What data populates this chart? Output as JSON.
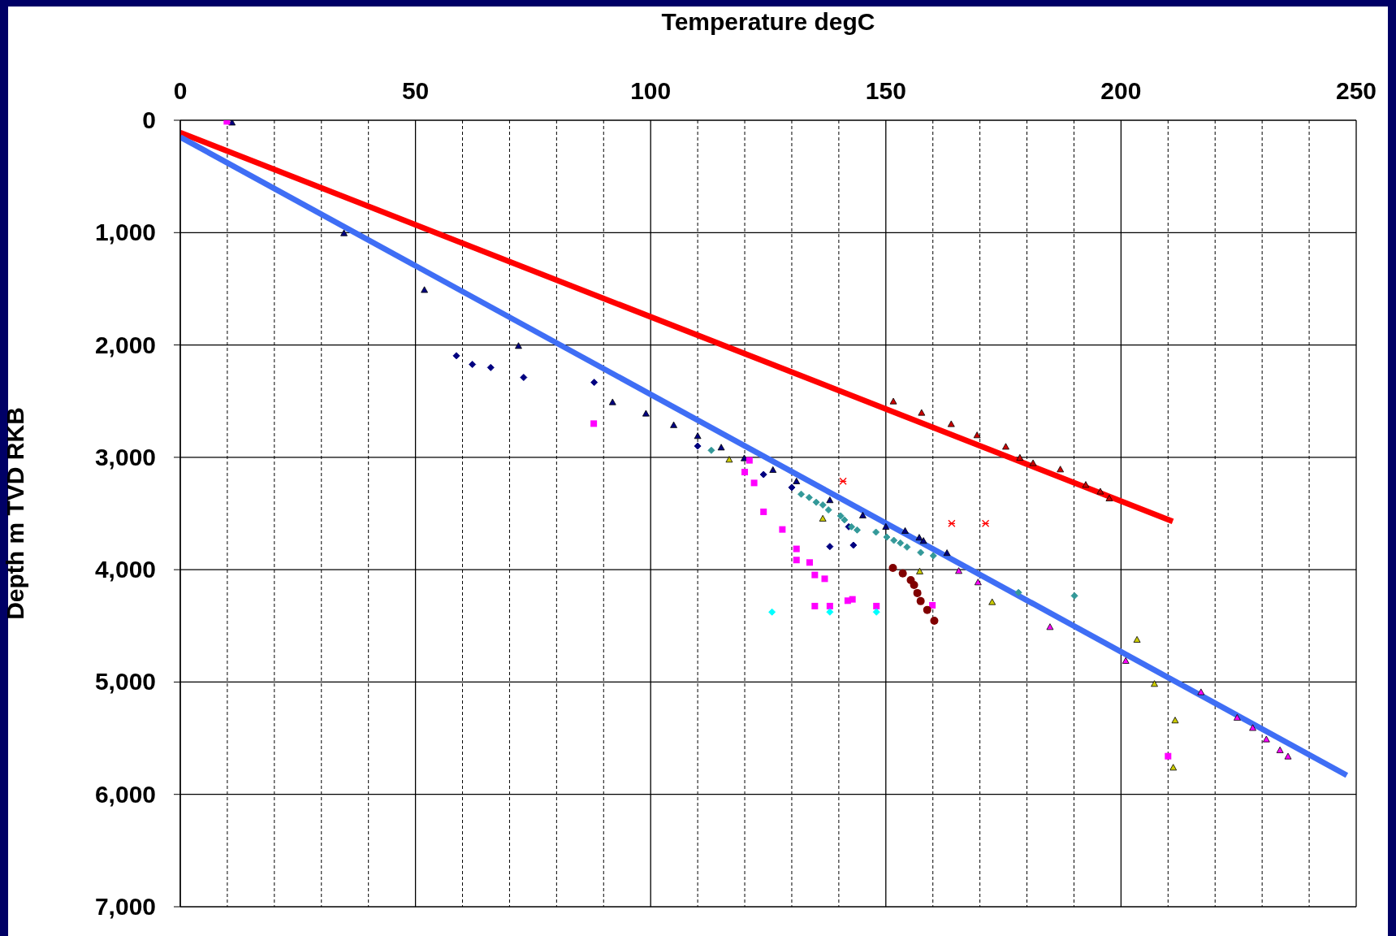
{
  "chart_data": {
    "type": "scatter",
    "xlabel": "Temperature degC",
    "ylabel": "Depth m TVD RKB",
    "xlim": [
      0,
      250
    ],
    "xticks": [
      0,
      {
        "value": 10,
        "label": null
      },
      {
        "value": 20,
        "label": null
      },
      {
        "value": 30,
        "label": null
      },
      {
        "value": 40,
        "label": null
      },
      50,
      {
        "value": 60,
        "label": null
      },
      {
        "value": 70,
        "label": null
      },
      {
        "value": 80,
        "label": null
      },
      {
        "value": 90,
        "label": null
      },
      100,
      {
        "value": 110,
        "label": null
      },
      {
        "value": 120,
        "label": null
      },
      {
        "value": 130,
        "label": null
      },
      {
        "value": 140,
        "label": null
      },
      150,
      {
        "value": 160,
        "label": null
      },
      {
        "value": 170,
        "label": null
      },
      {
        "value": 180,
        "label": null
      },
      {
        "value": 190,
        "label": null
      },
      200,
      {
        "value": 210,
        "label": null
      },
      {
        "value": 220,
        "label": null
      },
      {
        "value": 230,
        "label": null
      },
      {
        "value": 240,
        "label": null
      },
      250
    ],
    "ylim": [
      7000,
      0
    ],
    "yticks": [
      0,
      {
        "value": 1000,
        "label": "1,000"
      },
      {
        "value": 2000,
        "label": "2,000"
      },
      {
        "value": 3000,
        "label": "3,000"
      },
      {
        "value": 4000,
        "label": "4,000"
      },
      {
        "value": 5000,
        "label": "5,000"
      },
      {
        "value": 6000,
        "label": "6,000"
      },
      {
        "value": 7000,
        "label": "7,000"
      }
    ],
    "grid": true,
    "series": [
      {
        "type": "line",
        "color": "#ff0000",
        "x": [
          0,
          211
        ],
        "values": [
          110,
          3570
        ]
      },
      {
        "type": "line",
        "color": "#3f6ef5",
        "x": [
          0,
          248
        ],
        "values": [
          150,
          5830
        ]
      },
      {
        "color": "#000080",
        "marker": "triangle",
        "x": [
          11,
          34.8,
          51.9,
          71.9,
          91.9,
          99,
          104.9,
          110,
          115,
          119.9,
          126,
          131,
          138.1,
          145.1,
          150,
          154.1,
          157.1,
          158,
          163
        ],
        "values": [
          20,
          1005,
          1510,
          2008,
          2509,
          2610,
          2713,
          2810,
          2912,
          3008,
          3112,
          3213,
          3381,
          3517,
          3618,
          3654,
          3714,
          3743,
          3851
        ]
      },
      {
        "color": "#000080",
        "marker": "diamond",
        "x": [
          58.7,
          62.1,
          66,
          73,
          88,
          110,
          124,
          130,
          138.1,
          143.1,
          142.1
        ],
        "values": [
          2096,
          2173,
          2201,
          2289,
          2333,
          2900,
          3153,
          3268,
          3794,
          3782,
          3618
        ]
      },
      {
        "color": "#ff00ff",
        "marker": "square",
        "x": [
          9.9,
          87.9,
          121,
          120,
          122,
          124,
          128,
          131,
          131,
          133.8,
          134.9,
          137,
          134.9,
          138.1,
          141.9,
          142.9,
          148,
          159.9,
          210
        ],
        "values": [
          10,
          2700,
          3027,
          3131,
          3228,
          3485,
          3642,
          3815,
          3914,
          3936,
          4047,
          4081,
          4324,
          4324,
          4276,
          4264,
          4324,
          4317,
          5660
        ]
      },
      {
        "color": "#339999",
        "marker": "diamond",
        "x": [
          112.9,
          132,
          133.7,
          135.2,
          136.6,
          137.8,
          140.4,
          141.2,
          142.7,
          143.9,
          147.9,
          150.2,
          151.7,
          153.1,
          154.5,
          157.4,
          160.1,
          178.2,
          190.1
        ],
        "values": [
          2938,
          3328,
          3357,
          3400,
          3424,
          3468,
          3521,
          3557,
          3618,
          3647,
          3666,
          3710,
          3739,
          3763,
          3799,
          3847,
          3876,
          4203,
          4233
        ]
      },
      {
        "color": "#cccc00",
        "marker": "triangle",
        "x": [
          116.7,
          136.6,
          157.2,
          172.6,
          203.4,
          207.1,
          211.5,
          211.1
        ],
        "values": [
          3020,
          3545,
          4015,
          4288,
          4623,
          5016,
          5341,
          5761
        ]
      },
      {
        "color": "#cc0000",
        "marker": "triangle",
        "x": [
          151.6,
          157.6,
          163.9,
          169.4,
          175.5,
          178.5,
          181.3,
          187.1,
          192.5,
          195.6,
          197.5
        ],
        "values": [
          2502,
          2603,
          2704,
          2803,
          2905,
          3003,
          3051,
          3107,
          3244,
          3304,
          3365
        ]
      },
      {
        "color": "#ff0000",
        "marker": "cross",
        "x": [
          140.9,
          164,
          171.2
        ],
        "values": [
          3213,
          3589,
          3589
        ]
      },
      {
        "color": "#ff00ff",
        "marker": "triangle",
        "x": [
          165.5,
          169.6,
          184.9,
          201,
          217,
          224.7,
          228,
          230.9,
          233.8,
          235.5
        ],
        "values": [
          4011,
          4112,
          4510,
          4811,
          5090,
          5317,
          5408,
          5510,
          5606,
          5662
        ]
      },
      {
        "color": "#800000",
        "marker": "circle",
        "x": [
          151.5,
          153.6,
          155.3,
          156,
          156.7,
          157.4,
          158.8,
          160.3
        ],
        "values": [
          3984,
          4033,
          4093,
          4136,
          4208,
          4280,
          4358,
          4454
        ]
      },
      {
        "color": "#00ffff",
        "marker": "diamond",
        "x": [
          125.8,
          138.1,
          148
        ],
        "values": [
          4377,
          4377,
          4377
        ]
      }
    ]
  }
}
